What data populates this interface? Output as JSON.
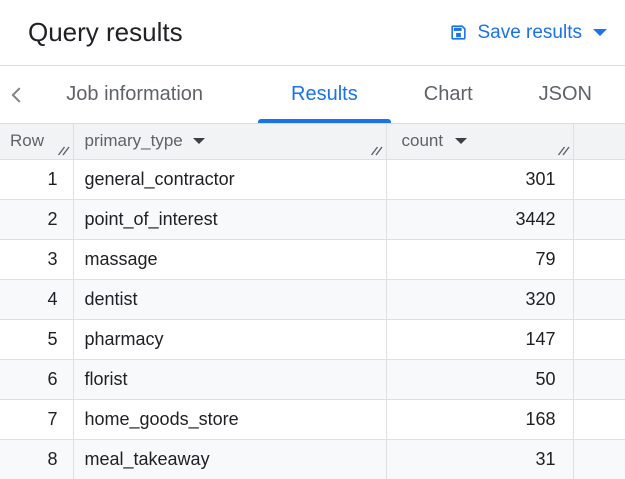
{
  "header": {
    "title": "Query results",
    "save_button": {
      "label": "Save results",
      "icon": "save-icon",
      "caret_icon": "caret-down-icon"
    }
  },
  "tabs": {
    "back_icon": "chevron-left-icon",
    "items": [
      {
        "label": "Job information",
        "active": false
      },
      {
        "label": "Results",
        "active": true
      },
      {
        "label": "Chart",
        "active": false
      },
      {
        "label": "JSON",
        "active": false
      }
    ]
  },
  "table": {
    "columns": [
      {
        "label": "Row",
        "sortable": false,
        "resize_icon": "column-resize-icon"
      },
      {
        "label": "primary_type",
        "sortable": true,
        "sort_icon": "caret-down-icon",
        "resize_icon": "column-resize-icon"
      },
      {
        "label": "count",
        "sortable": true,
        "sort_icon": "caret-down-icon",
        "resize_icon": "column-resize-icon"
      }
    ],
    "rows": [
      {
        "row": 1,
        "primary_type": "general_contractor",
        "count": 301
      },
      {
        "row": 2,
        "primary_type": "point_of_interest",
        "count": 3442
      },
      {
        "row": 3,
        "primary_type": "massage",
        "count": 79
      },
      {
        "row": 4,
        "primary_type": "dentist",
        "count": 320
      },
      {
        "row": 5,
        "primary_type": "pharmacy",
        "count": 147
      },
      {
        "row": 6,
        "primary_type": "florist",
        "count": 50
      },
      {
        "row": 7,
        "primary_type": "home_goods_store",
        "count": 168
      },
      {
        "row": 8,
        "primary_type": "meal_takeaway",
        "count": 31
      }
    ]
  },
  "colors": {
    "accent": "#1a73e8",
    "title-text": "#202124",
    "tab-text": "#5f6368",
    "back-icon": "#80868b",
    "thead-bg": "#f1f3f4",
    "thead-text": "#5f6368",
    "caret": "#3c4043",
    "cell-text": "#202124",
    "stripe": "#f8f9fa",
    "grid-line": "#e0e0e0",
    "divider": "#dadce0"
  }
}
